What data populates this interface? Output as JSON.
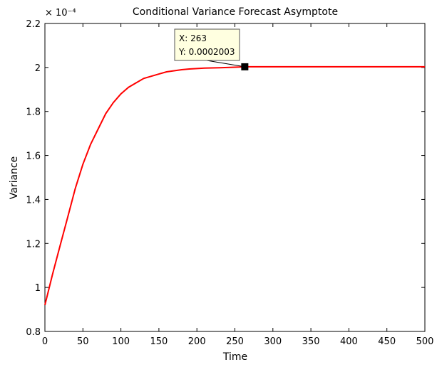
{
  "chart_data": {
    "type": "line",
    "title": "Conditional Variance Forecast Asymptote",
    "xlabel": "Time",
    "ylabel": "Variance",
    "xlim": [
      0,
      500
    ],
    "ylim": [
      0.8,
      2.2
    ],
    "y_exponent_label": "× 10⁻⁴",
    "y_scale_note": "values shown ×10⁻⁴",
    "xticks": [
      "0",
      "50",
      "100",
      "150",
      "200",
      "250",
      "300",
      "350",
      "400",
      "450",
      "500"
    ],
    "yticks": [
      "0.8",
      "1",
      "1.2",
      "1.4",
      "1.6",
      "1.8",
      "2",
      "2.2"
    ],
    "grid": false,
    "series": [
      {
        "color": "#ff0000",
        "x": [
          0,
          10,
          20,
          30,
          40,
          50,
          60,
          70,
          80,
          90,
          100,
          110,
          120,
          130,
          140,
          150,
          160,
          170,
          180,
          190,
          200,
          210,
          220,
          230,
          240,
          250,
          263,
          275,
          300,
          350,
          400,
          450,
          500
        ],
        "y": [
          0.92,
          1.06,
          1.19,
          1.32,
          1.45,
          1.56,
          1.65,
          1.72,
          1.79,
          1.84,
          1.88,
          1.91,
          1.93,
          1.95,
          1.96,
          1.97,
          1.98,
          1.985,
          1.99,
          1.993,
          1.995,
          1.997,
          1.998,
          1.999,
          2.0,
          2.001,
          2.003,
          2.003,
          2.003,
          2.003,
          2.003,
          2.003,
          2.003
        ]
      }
    ],
    "datatip": {
      "x": 263,
      "y": 2.003,
      "x_label": "X: 263",
      "y_label": "Y: 0.0002003"
    }
  }
}
